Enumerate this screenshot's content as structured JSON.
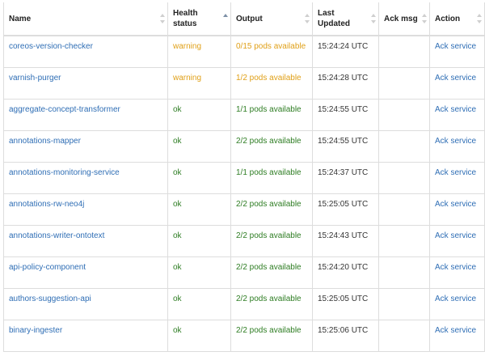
{
  "columns": [
    {
      "key": "name",
      "label": "Name",
      "sorted": false
    },
    {
      "key": "health",
      "label": "Health status",
      "sorted": true
    },
    {
      "key": "output",
      "label": "Output",
      "sorted": false
    },
    {
      "key": "updated",
      "label": "Last Updated",
      "sorted": false
    },
    {
      "key": "ack",
      "label": "Ack msg",
      "sorted": false
    },
    {
      "key": "action",
      "label": "Action",
      "sorted": false
    }
  ],
  "colors": {
    "warning": "#e0a018",
    "ok": "#2e7d23",
    "link": "#2f6eb5"
  },
  "action_label": "Ack service",
  "rows": [
    {
      "name": "coreos-version-checker",
      "health": "warning",
      "output": "0/15 pods available",
      "updated": "15:24:24 UTC",
      "ack": ""
    },
    {
      "name": "varnish-purger",
      "health": "warning",
      "output": "1/2 pods available",
      "updated": "15:24:28 UTC",
      "ack": ""
    },
    {
      "name": "aggregate-concept-transformer",
      "health": "ok",
      "output": "1/1 pods available",
      "updated": "15:24:55 UTC",
      "ack": ""
    },
    {
      "name": "annotations-mapper",
      "health": "ok",
      "output": "2/2 pods available",
      "updated": "15:24:55 UTC",
      "ack": ""
    },
    {
      "name": "annotations-monitoring-service",
      "health": "ok",
      "output": "1/1 pods available",
      "updated": "15:24:37 UTC",
      "ack": ""
    },
    {
      "name": "annotations-rw-neo4j",
      "health": "ok",
      "output": "2/2 pods available",
      "updated": "15:25:05 UTC",
      "ack": ""
    },
    {
      "name": "annotations-writer-ontotext",
      "health": "ok",
      "output": "2/2 pods available",
      "updated": "15:24:43 UTC",
      "ack": ""
    },
    {
      "name": "api-policy-component",
      "health": "ok",
      "output": "2/2 pods available",
      "updated": "15:24:20 UTC",
      "ack": ""
    },
    {
      "name": "authors-suggestion-api",
      "health": "ok",
      "output": "2/2 pods available",
      "updated": "15:25:05 UTC",
      "ack": ""
    },
    {
      "name": "binary-ingester",
      "health": "ok",
      "output": "2/2 pods available",
      "updated": "15:25:06 UTC",
      "ack": ""
    }
  ]
}
